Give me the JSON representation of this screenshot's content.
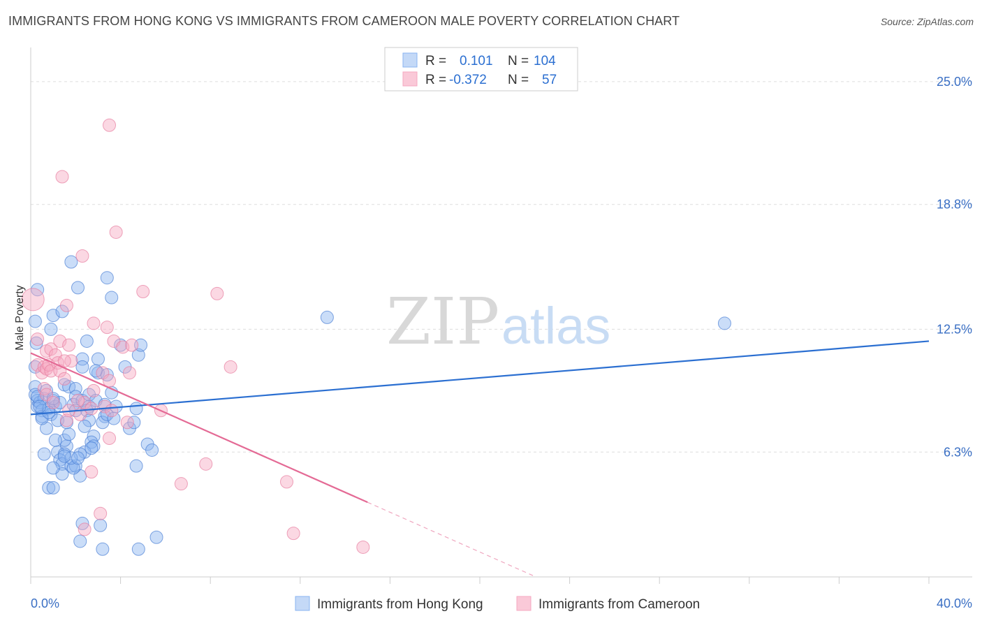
{
  "header": {
    "title": "IMMIGRANTS FROM HONG KONG VS IMMIGRANTS FROM CAMEROON MALE POVERTY CORRELATION CHART",
    "source": "Source: ZipAtlas.com"
  },
  "watermark": {
    "zip": "ZIP",
    "atlas": "atlas"
  },
  "stats_legend": {
    "rows": [
      {
        "r_label": "R =",
        "r_value": "0.101",
        "n_label": "N =",
        "n_value": "104"
      },
      {
        "r_label": "R =",
        "r_value": "-0.372",
        "n_label": "N =",
        "n_value": "57"
      }
    ]
  },
  "colors": {
    "blue": "#8ab4f0",
    "blue_stroke": "#4a7fd4",
    "blue_line": "#2b6fd1",
    "pink": "#f6a8c1",
    "pink_stroke": "#e77ea0",
    "pink_line": "#e46a95",
    "text_value": "#2b6fd1",
    "grid": "#dddddd"
  },
  "chart_data": {
    "type": "scatter",
    "ylabel": "Male Poverty",
    "xlim": [
      0,
      40
    ],
    "ylim": [
      0,
      26.3
    ],
    "x_tick_labels": [
      {
        "value": 0,
        "label": "0.0%"
      },
      {
        "value": 40,
        "label": "40.0%"
      }
    ],
    "y_tick_labels": [
      {
        "value": 6.3,
        "label": "6.3%"
      },
      {
        "value": 12.5,
        "label": "12.5%"
      },
      {
        "value": 18.8,
        "label": "18.8%"
      },
      {
        "value": 25.0,
        "label": "25.0%"
      }
    ],
    "grid": true,
    "legend_position": "bottom-center",
    "series": [
      {
        "name": "Immigrants from Hong Kong",
        "color": "blue",
        "r": 0.101,
        "n": 104,
        "trend": {
          "x": [
            0,
            40
          ],
          "y": [
            8.2,
            11.9
          ],
          "dashed_from": null
        },
        "points": [
          [
            0.3,
            14.5
          ],
          [
            0.2,
            12.9
          ],
          [
            0.25,
            11.8
          ],
          [
            0.2,
            10.6
          ],
          [
            0.2,
            9.6
          ],
          [
            0.2,
            9.2
          ],
          [
            0.3,
            8.9
          ],
          [
            0.3,
            8.6
          ],
          [
            0.4,
            8.8
          ],
          [
            0.5,
            8.4
          ],
          [
            0.6,
            9.0
          ],
          [
            0.5,
            8.1
          ],
          [
            0.7,
            9.4
          ],
          [
            0.8,
            8.5
          ],
          [
            0.9,
            8.2
          ],
          [
            0.7,
            7.5
          ],
          [
            1.0,
            8.9
          ],
          [
            1.1,
            8.6
          ],
          [
            1.2,
            7.9
          ],
          [
            1.3,
            8.8
          ],
          [
            0.9,
            12.5
          ],
          [
            1.0,
            13.2
          ],
          [
            1.4,
            13.4
          ],
          [
            1.8,
            15.9
          ],
          [
            2.1,
            14.6
          ],
          [
            2.5,
            11.9
          ],
          [
            2.3,
            11.0
          ],
          [
            2.3,
            10.6
          ],
          [
            1.5,
            9.7
          ],
          [
            1.7,
            9.6
          ],
          [
            2.0,
            9.5
          ],
          [
            2.0,
            9.1
          ],
          [
            1.9,
            8.7
          ],
          [
            2.3,
            8.9
          ],
          [
            2.6,
            9.2
          ],
          [
            2.6,
            8.6
          ],
          [
            2.5,
            8.4
          ],
          [
            2.9,
            8.9
          ],
          [
            3.0,
            10.3
          ],
          [
            3.4,
            10.2
          ],
          [
            3.0,
            11.0
          ],
          [
            3.4,
            15.1
          ],
          [
            3.6,
            14.1
          ],
          [
            4.0,
            11.7
          ],
          [
            4.2,
            10.6
          ],
          [
            4.8,
            11.2
          ],
          [
            4.9,
            11.7
          ],
          [
            3.6,
            9.3
          ],
          [
            3.3,
            8.1
          ],
          [
            2.6,
            7.9
          ],
          [
            2.4,
            7.6
          ],
          [
            3.2,
            7.8
          ],
          [
            3.4,
            8.2
          ],
          [
            4.4,
            7.5
          ],
          [
            4.6,
            7.8
          ],
          [
            4.7,
            8.5
          ],
          [
            5.2,
            6.7
          ],
          [
            5.4,
            6.4
          ],
          [
            2.8,
            7.1
          ],
          [
            2.7,
            6.8
          ],
          [
            2.8,
            6.6
          ],
          [
            2.4,
            6.3
          ],
          [
            2.2,
            6.2
          ],
          [
            1.6,
            6.6
          ],
          [
            1.5,
            6.9
          ],
          [
            1.2,
            6.3
          ],
          [
            1.1,
            6.9
          ],
          [
            1.5,
            6.2
          ],
          [
            1.3,
            5.9
          ],
          [
            1.4,
            5.7
          ],
          [
            1.4,
            5.2
          ],
          [
            1.0,
            5.5
          ],
          [
            1.8,
            5.6
          ],
          [
            2.0,
            5.6
          ],
          [
            2.2,
            5.1
          ],
          [
            1.9,
            5.5
          ],
          [
            4.7,
            5.6
          ],
          [
            0.8,
            4.5
          ],
          [
            1.0,
            4.5
          ],
          [
            1.8,
            6.0
          ],
          [
            2.1,
            6.0
          ],
          [
            0.6,
            6.2
          ],
          [
            1.5,
            6.1
          ],
          [
            3.1,
            2.6
          ],
          [
            3.2,
            1.4
          ],
          [
            2.2,
            1.8
          ],
          [
            4.8,
            1.4
          ],
          [
            5.6,
            2.0
          ],
          [
            2.3,
            2.7
          ],
          [
            13.2,
            13.1
          ],
          [
            30.9,
            12.8
          ],
          [
            0.5,
            8.0
          ],
          [
            0.8,
            8.3
          ],
          [
            1.7,
            7.2
          ],
          [
            3.3,
            8.7
          ],
          [
            2.0,
            8.4
          ],
          [
            1.0,
            9.0
          ],
          [
            3.7,
            8.0
          ],
          [
            2.7,
            6.5
          ],
          [
            1.6,
            7.8
          ],
          [
            3.8,
            8.6
          ],
          [
            0.3,
            9.1
          ],
          [
            0.4,
            8.6
          ],
          [
            2.9,
            10.4
          ]
        ]
      },
      {
        "name": "Immigrants from Cameroon",
        "color": "pink",
        "r": -0.372,
        "n": 57,
        "trend": {
          "x": [
            0,
            22.5
          ],
          "y": [
            11.3,
            0
          ],
          "dashed_from": 15.0
        },
        "points": [
          [
            0.1,
            14.0
          ],
          [
            0.3,
            12.0
          ],
          [
            0.3,
            10.7
          ],
          [
            0.5,
            10.3
          ],
          [
            0.6,
            10.6
          ],
          [
            0.7,
            10.5
          ],
          [
            0.8,
            10.7
          ],
          [
            0.9,
            10.4
          ],
          [
            0.7,
            11.4
          ],
          [
            0.9,
            11.5
          ],
          [
            1.1,
            11.2
          ],
          [
            1.2,
            10.8
          ],
          [
            1.3,
            10.4
          ],
          [
            1.3,
            11.9
          ],
          [
            1.7,
            11.7
          ],
          [
            1.8,
            10.9
          ],
          [
            1.5,
            10.0
          ],
          [
            1.5,
            10.9
          ],
          [
            0.6,
            9.5
          ],
          [
            0.7,
            9.2
          ],
          [
            1.0,
            8.8
          ],
          [
            1.7,
            8.4
          ],
          [
            1.6,
            7.9
          ],
          [
            2.2,
            8.2
          ],
          [
            2.4,
            8.8
          ],
          [
            2.7,
            8.5
          ],
          [
            2.1,
            8.9
          ],
          [
            2.8,
            9.4
          ],
          [
            3.2,
            10.3
          ],
          [
            3.5,
            9.9
          ],
          [
            2.8,
            12.8
          ],
          [
            3.4,
            12.6
          ],
          [
            3.7,
            11.9
          ],
          [
            4.1,
            11.6
          ],
          [
            4.4,
            10.3
          ],
          [
            4.5,
            11.7
          ],
          [
            5.0,
            14.4
          ],
          [
            3.8,
            17.4
          ],
          [
            2.3,
            16.2
          ],
          [
            1.6,
            13.7
          ],
          [
            3.5,
            22.8
          ],
          [
            1.4,
            20.2
          ],
          [
            8.3,
            14.3
          ],
          [
            8.9,
            10.6
          ],
          [
            3.3,
            8.6
          ],
          [
            3.6,
            8.4
          ],
          [
            4.3,
            7.8
          ],
          [
            3.5,
            7.0
          ],
          [
            2.7,
            5.3
          ],
          [
            5.8,
            8.4
          ],
          [
            7.8,
            5.7
          ],
          [
            6.7,
            4.7
          ],
          [
            11.4,
            4.8
          ],
          [
            11.7,
            2.2
          ],
          [
            14.8,
            1.5
          ],
          [
            3.1,
            3.2
          ],
          [
            2.4,
            2.4
          ]
        ]
      }
    ]
  }
}
